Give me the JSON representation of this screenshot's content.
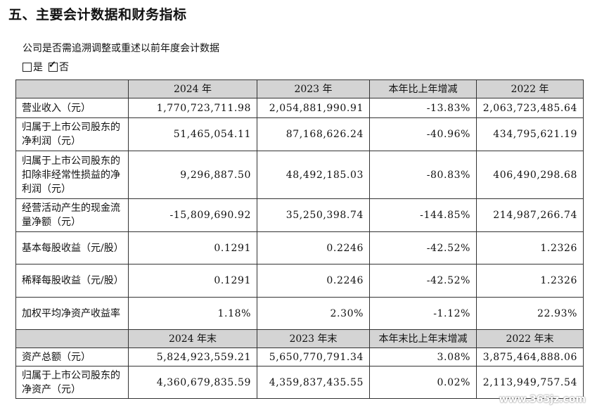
{
  "title": "五、主要会计数据和财务指标",
  "subtitle": "公司是否需追溯调整或重述以前年度会计数据",
  "choices": {
    "yes": "是",
    "no": "否"
  },
  "table1": {
    "headers": [
      "",
      "2024 年",
      "2023 年",
      "本年比上年增减",
      "2022 年"
    ],
    "rows": [
      {
        "label": "营业收入（元）",
        "v2024": "1,770,723,711.98",
        "v2023": "2,054,881,990.91",
        "change": "-13.83%",
        "v2022": "2,063,723,485.64"
      },
      {
        "label": "归属于上市公司股东的净利润（元）",
        "v2024": "51,465,054.11",
        "v2023": "87,168,626.24",
        "change": "-40.96%",
        "v2022": "434,795,621.19"
      },
      {
        "label": "归属于上市公司股东的扣除非经常性损益的净利润（元）",
        "v2024": "9,296,887.50",
        "v2023": "48,492,185.03",
        "change": "-80.83%",
        "v2022": "406,490,298.68"
      },
      {
        "label": "经营活动产生的现金流量净额（元）",
        "v2024": "-15,809,690.92",
        "v2023": "35,250,398.74",
        "change": "-144.85%",
        "v2022": "214,987,266.74"
      },
      {
        "label": "基本每股收益（元/股）",
        "v2024": "0.1291",
        "v2023": "0.2246",
        "change": "-42.52%",
        "v2022": "1.2326"
      },
      {
        "label": "稀释每股收益（元/股）",
        "v2024": "0.1291",
        "v2023": "0.2246",
        "change": "-42.52%",
        "v2022": "1.2326"
      },
      {
        "label": "加权平均净资产收益率",
        "v2024": "1.18%",
        "v2023": "2.30%",
        "change": "-1.12%",
        "v2022": "22.93%"
      }
    ]
  },
  "table2": {
    "headers": [
      "",
      "2024 年末",
      "2023 年末",
      "本年末比上年末增减",
      "2022 年末"
    ],
    "rows": [
      {
        "label": "资产总额（元）",
        "v2024": "5,824,923,559.21",
        "v2023": "5,650,770,791.34",
        "change": "3.08%",
        "v2022": "3,875,464,888.06"
      },
      {
        "label": "归属于上市公司股东的净资产（元）",
        "v2024": "4,360,679,835.59",
        "v2023": "4,359,837,435.55",
        "change": "0.02%",
        "v2022": "2,113,949,757.54"
      }
    ]
  },
  "watermark": "www.365jz.com"
}
